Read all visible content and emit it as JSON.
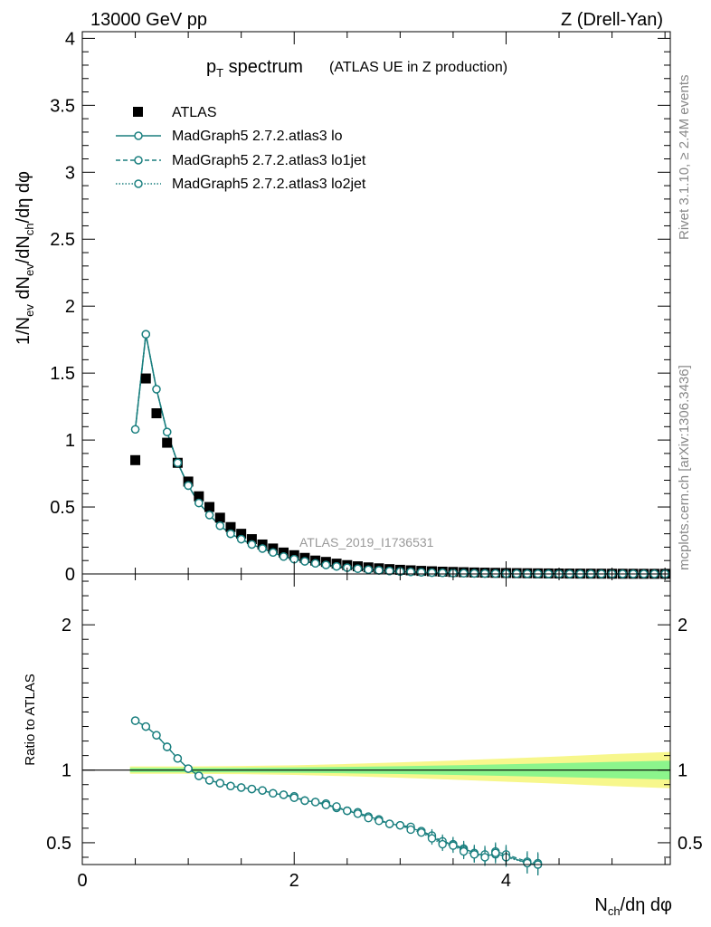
{
  "header": {
    "left": "13000 GeV pp",
    "right": "Z (Drell-Yan)"
  },
  "title": {
    "main_prefix": "p",
    "main_sub": "T",
    "main_suffix": " spectrum",
    "paren": "(ATLAS UE in Z production)"
  },
  "side_labels": {
    "rivet": "Rivet 3.1.10, ≥ 2.4M events",
    "mcplots": "mcplots.cern.ch [arXiv:1306.3436]"
  },
  "watermark": "ATLAS_2019_I1736531",
  "axes": {
    "ylabel_top": "1/N_ev dN_ev/dN_ch/dη dφ",
    "ylabel_bottom": "Ratio to ATLAS",
    "xlabel": "N_ch/dη dφ"
  },
  "legend": [
    {
      "label": "ATLAS",
      "style": "square"
    },
    {
      "label": "MadGraph5 2.7.2.atlas3 lo",
      "style": "solid"
    },
    {
      "label": "MadGraph5 2.7.2.atlas3 lo1jet",
      "style": "dashed"
    },
    {
      "label": "MadGraph5 2.7.2.atlas3 lo2jet",
      "style": "dotted"
    }
  ],
  "colors": {
    "data": "#000000",
    "mc": "#1a7f7f",
    "band_inner": "#8cf58c",
    "band_outer": "#f7f78c"
  },
  "chart_data": [
    {
      "type": "scatter",
      "panel": "main",
      "xlim": [
        0,
        5.55
      ],
      "ylim": [
        0,
        4.05
      ],
      "yticks": [
        0,
        0.5,
        1,
        1.5,
        2,
        2.5,
        3,
        3.5,
        4
      ],
      "ytick_labels": [
        "0",
        "0.5",
        "1",
        "1.5",
        "2",
        "2.5",
        "3",
        "3.5",
        "4"
      ],
      "x": [
        0.5,
        0.6,
        0.7,
        0.8,
        0.9,
        1.0,
        1.1,
        1.2,
        1.3,
        1.4,
        1.5,
        1.6,
        1.7,
        1.8,
        1.9,
        2.0,
        2.1,
        2.2,
        2.3,
        2.4,
        2.5,
        2.6,
        2.7,
        2.8,
        2.9,
        3.0,
        3.1,
        3.2,
        3.3,
        3.4,
        3.5,
        3.6,
        3.7,
        3.8,
        3.9,
        4.0,
        4.1,
        4.2,
        4.3,
        4.4,
        4.5,
        4.6,
        4.7,
        4.8,
        4.9,
        5.0,
        5.1,
        5.2,
        5.3,
        5.4,
        5.5
      ],
      "series": [
        {
          "name": "ATLAS",
          "values": [
            0.85,
            1.46,
            1.2,
            0.98,
            0.83,
            0.69,
            0.58,
            0.5,
            0.42,
            0.35,
            0.3,
            0.26,
            0.22,
            0.19,
            0.16,
            0.14,
            0.12,
            0.1,
            0.09,
            0.077,
            0.066,
            0.057,
            0.049,
            0.042,
            0.036,
            0.031,
            0.027,
            0.023,
            0.02,
            0.017,
            0.015,
            0.013,
            0.011,
            0.0095,
            0.0082,
            0.007,
            0.006,
            0.0052,
            0.0045,
            0.0039,
            0.0034,
            0.0029,
            0.0025,
            0.0022,
            0.0019,
            0.0016,
            0.0014,
            0.0012,
            0.001,
            0.0009,
            0.0008
          ]
        },
        {
          "name": "MadGraph5 2.7.2.atlas3 lo",
          "values": [
            1.08,
            1.79,
            1.38,
            1.06,
            0.83,
            0.66,
            0.53,
            0.44,
            0.36,
            0.3,
            0.26,
            0.22,
            0.19,
            0.16,
            0.13,
            0.11,
            0.094,
            0.079,
            0.067,
            0.056,
            0.047,
            0.039,
            0.032,
            0.027,
            0.022,
            0.018,
            0.015,
            0.012,
            0.01,
            0.008,
            0.0065,
            0.0052,
            0.0042,
            0.0034,
            0.0027,
            0.0022,
            0.0018,
            0.0014,
            0.0011,
            0.0009,
            0.0007,
            0.0006,
            0.0005,
            0.0004,
            0.0003,
            0.0002,
            0.0002,
            0.0001,
            0.0001,
            0.0001,
            0.0001
          ]
        },
        {
          "name": "MadGraph5 2.7.2.atlas3 lo1jet",
          "values": [
            1.08,
            1.79,
            1.38,
            1.06,
            0.83,
            0.66,
            0.53,
            0.44,
            0.36,
            0.3,
            0.26,
            0.22,
            0.19,
            0.16,
            0.13,
            0.11,
            0.094,
            0.079,
            0.067,
            0.056,
            0.047,
            0.039,
            0.032,
            0.027,
            0.022,
            0.018,
            0.015,
            0.012,
            0.01,
            0.008,
            0.0065,
            0.0052,
            0.0042,
            0.0034,
            0.0027,
            0.0022,
            0.0018,
            0.0014,
            0.0011,
            0.0009,
            0.0007,
            0.0006,
            0.0005,
            0.0004,
            0.0003,
            0.0002,
            0.0002,
            0.0001,
            0.0001,
            0.0001,
            0.0001
          ]
        },
        {
          "name": "MadGraph5 2.7.2.atlas3 lo2jet",
          "values": [
            1.08,
            1.79,
            1.38,
            1.06,
            0.83,
            0.66,
            0.53,
            0.44,
            0.36,
            0.3,
            0.26,
            0.22,
            0.19,
            0.16,
            0.13,
            0.11,
            0.094,
            0.079,
            0.067,
            0.056,
            0.047,
            0.039,
            0.032,
            0.027,
            0.022,
            0.018,
            0.015,
            0.012,
            0.01,
            0.008,
            0.0065,
            0.0052,
            0.0042,
            0.0034,
            0.0027,
            0.0022,
            0.0018,
            0.0014,
            0.0011,
            0.0009,
            0.0007,
            0.0006,
            0.0005,
            0.0004,
            0.0003,
            0.0002,
            0.0002,
            0.0001,
            0.0001,
            0.0001,
            0.0001
          ]
        }
      ]
    },
    {
      "type": "line",
      "panel": "ratio",
      "xlim": [
        0,
        5.55
      ],
      "ylim": [
        0.35,
        2.35
      ],
      "yticks": [
        0.5,
        1,
        2
      ],
      "ytick_labels": [
        "0.5",
        "1",
        "2"
      ],
      "xticks": [
        0,
        2,
        4
      ],
      "xtick_labels": [
        "0",
        "2",
        "4"
      ],
      "band": {
        "x": [
          0.45,
          1.0,
          1.5,
          2.0,
          2.5,
          3.0,
          3.5,
          4.0,
          4.5,
          5.0,
          5.55
        ],
        "inner": [
          0.015,
          0.015,
          0.016,
          0.018,
          0.022,
          0.027,
          0.033,
          0.04,
          0.048,
          0.056,
          0.065
        ],
        "outer": [
          0.025,
          0.025,
          0.028,
          0.033,
          0.042,
          0.053,
          0.066,
          0.08,
          0.094,
          0.11,
          0.125
        ]
      },
      "x": [
        0.5,
        0.6,
        0.7,
        0.8,
        0.9,
        1.0,
        1.1,
        1.2,
        1.3,
        1.4,
        1.5,
        1.6,
        1.7,
        1.8,
        1.9,
        2.0,
        2.1,
        2.2,
        2.3,
        2.4,
        2.5,
        2.6,
        2.7,
        2.8,
        2.9,
        3.0,
        3.1,
        3.2,
        3.3,
        3.4,
        3.5,
        3.6,
        3.7,
        3.8,
        3.9,
        4.0,
        4.2,
        4.3
      ],
      "series": [
        {
          "name": "MadGraph5 2.7.2.atlas3 lo",
          "values": [
            1.34,
            1.3,
            1.24,
            1.16,
            1.08,
            1.01,
            0.96,
            0.93,
            0.91,
            0.89,
            0.88,
            0.87,
            0.86,
            0.84,
            0.83,
            0.81,
            0.79,
            0.78,
            0.76,
            0.74,
            0.72,
            0.7,
            0.68,
            0.66,
            0.63,
            0.62,
            0.6,
            0.58,
            0.54,
            0.5,
            0.49,
            0.46,
            0.43,
            0.41,
            0.42,
            0.41,
            0.36,
            0.35
          ]
        },
        {
          "name": "MadGraph5 2.7.2.atlas3 lo1jet",
          "values": [
            1.34,
            1.3,
            1.24,
            1.16,
            1.08,
            1.01,
            0.96,
            0.93,
            0.91,
            0.89,
            0.88,
            0.87,
            0.86,
            0.84,
            0.83,
            0.82,
            0.79,
            0.78,
            0.77,
            0.74,
            0.72,
            0.71,
            0.68,
            0.66,
            0.63,
            0.62,
            0.61,
            0.58,
            0.55,
            0.51,
            0.49,
            0.45,
            0.42,
            0.42,
            0.44,
            0.42,
            0.37,
            0.36
          ]
        },
        {
          "name": "MadGraph5 2.7.2.atlas3 lo2jet",
          "values": [
            1.34,
            1.3,
            1.24,
            1.16,
            1.08,
            1.01,
            0.96,
            0.93,
            0.91,
            0.89,
            0.88,
            0.87,
            0.86,
            0.84,
            0.83,
            0.81,
            0.79,
            0.78,
            0.76,
            0.75,
            0.72,
            0.7,
            0.67,
            0.65,
            0.63,
            0.62,
            0.59,
            0.57,
            0.53,
            0.49,
            0.48,
            0.44,
            0.42,
            0.4,
            0.43,
            0.4,
            0.36,
            0.35
          ]
        }
      ]
    }
  ]
}
